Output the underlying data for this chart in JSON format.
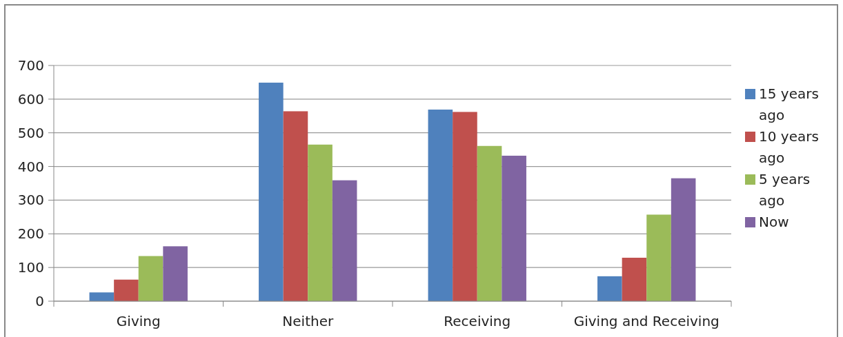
{
  "chart_data": {
    "type": "bar",
    "categories": [
      "Giving",
      "Neither",
      "Receiving",
      "Giving and Receiving"
    ],
    "series": [
      {
        "name": "15 years ago",
        "color": "#4f81bd",
        "values": [
          26,
          649,
          569,
          74
        ]
      },
      {
        "name": "10 years ago",
        "color": "#c0504d",
        "values": [
          64,
          564,
          562,
          129
        ]
      },
      {
        "name": "5 years ago",
        "color": "#9bbb59",
        "values": [
          134,
          465,
          461,
          257
        ]
      },
      {
        "name": "Now",
        "color": "#8064a2",
        "values": [
          163,
          359,
          432,
          365
        ]
      }
    ],
    "ylim": [
      0,
      700
    ],
    "yticks": [
      0,
      100,
      200,
      300,
      400,
      500,
      600,
      700
    ],
    "grid": "y",
    "legend": "right"
  }
}
